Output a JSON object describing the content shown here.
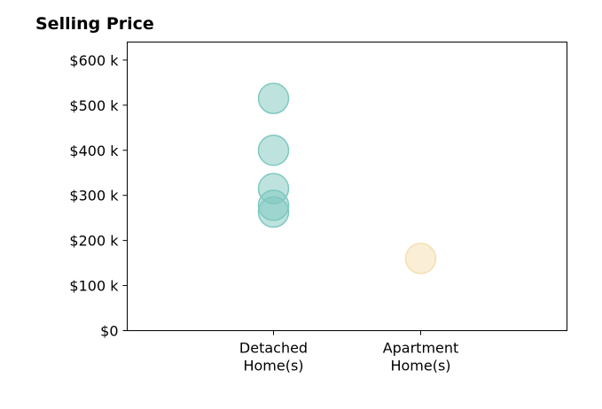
{
  "chart_data": {
    "type": "scatter",
    "title": "Selling Price",
    "xlabel": "",
    "ylabel": "",
    "categories": [
      "Detached\nHome(s)",
      "Apartment\nHome(s)"
    ],
    "yticks": [
      "$0",
      "$100 k",
      "$200 k",
      "$300 k",
      "$400 k",
      "$500 k",
      "$600 k"
    ],
    "ylim": [
      0,
      640000
    ],
    "grid": false,
    "series": [
      {
        "category": "Detached\nHome(s)",
        "color": "#7ec8bf",
        "values": [
          515000,
          400000,
          315000,
          278000,
          263000
        ]
      },
      {
        "category": "Apartment\nHome(s)",
        "color": "#f5deb0",
        "values": [
          160000
        ]
      }
    ]
  }
}
